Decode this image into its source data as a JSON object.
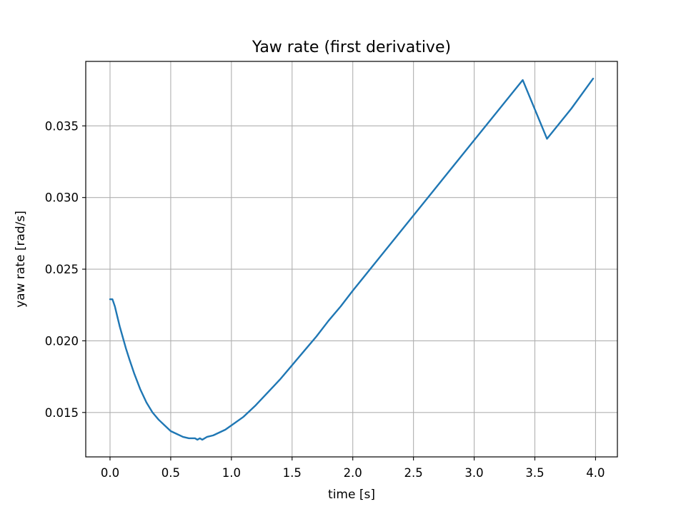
{
  "chart_data": {
    "type": "line",
    "title": "Yaw rate (first derivative)",
    "xlabel": "time [s]",
    "ylabel": "yaw rate [rad/s]",
    "xlim": [
      -0.2,
      4.18
    ],
    "ylim": [
      0.0119,
      0.0395
    ],
    "x_ticks": [
      0.0,
      0.5,
      1.0,
      1.5,
      2.0,
      2.5,
      3.0,
      3.5,
      4.0
    ],
    "x_tick_labels": [
      "0.0",
      "0.5",
      "1.0",
      "1.5",
      "2.0",
      "2.5",
      "3.0",
      "3.5",
      "4.0"
    ],
    "y_ticks": [
      0.015,
      0.02,
      0.025,
      0.03,
      0.035
    ],
    "y_tick_labels": [
      "0.015",
      "0.020",
      "0.025",
      "0.030",
      "0.035"
    ],
    "grid": true,
    "series": [
      {
        "color": "#1f77b4",
        "x": [
          0.0,
          0.02,
          0.04,
          0.06,
          0.08,
          0.1,
          0.13,
          0.16,
          0.2,
          0.25,
          0.3,
          0.35,
          0.4,
          0.45,
          0.5,
          0.55,
          0.6,
          0.65,
          0.7,
          0.72,
          0.74,
          0.76,
          0.8,
          0.85,
          0.9,
          0.95,
          1.0,
          1.1,
          1.2,
          1.3,
          1.4,
          1.5,
          1.6,
          1.7,
          1.8,
          1.9,
          2.0,
          2.2,
          2.4,
          2.6,
          2.8,
          3.0,
          3.2,
          3.4,
          3.6,
          3.8,
          3.98
        ],
        "y": [
          0.0229,
          0.0229,
          0.0224,
          0.0217,
          0.021,
          0.0204,
          0.0195,
          0.0187,
          0.0177,
          0.0166,
          0.0157,
          0.015,
          0.0145,
          0.0141,
          0.0137,
          0.0135,
          0.0133,
          0.0132,
          0.0132,
          0.0131,
          0.0132,
          0.0131,
          0.0133,
          0.0134,
          0.0136,
          0.0138,
          0.0141,
          0.0147,
          0.0155,
          0.0164,
          0.0173,
          0.0183,
          0.0193,
          0.0203,
          0.0214,
          0.0224,
          0.0235,
          0.0256,
          0.0277,
          0.0298,
          0.0319,
          0.034,
          0.0361,
          0.0382,
          0.0341,
          0.0362,
          0.0383
        ]
      }
    ]
  }
}
